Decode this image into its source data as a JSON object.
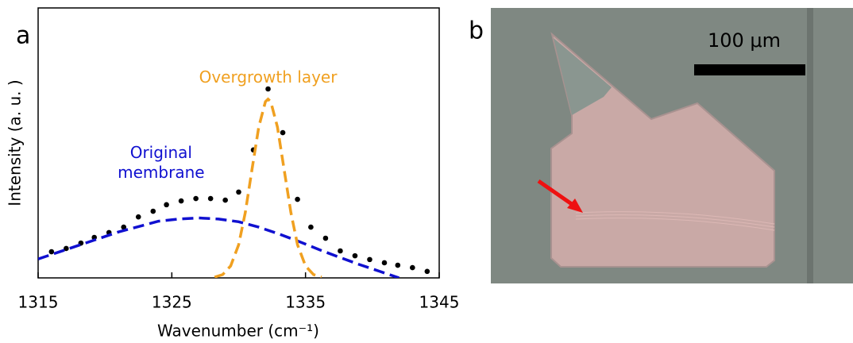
{
  "chart_data": {
    "type": "line",
    "panel_label": "a",
    "xlabel": "Wavenumber (cm⁻¹)",
    "ylabel": "Intensity (a. u. )",
    "xlim": [
      1315,
      1345
    ],
    "xticks": [
      1315,
      1325,
      1335,
      1345
    ],
    "ylim": [
      0,
      1
    ],
    "annotations": [
      {
        "lines": [
          "Overgrowth layer"
        ],
        "color": "#f0a020",
        "x": 1332.2,
        "y": 0.74
      },
      {
        "lines": [
          "Original",
          "membrane"
        ],
        "color": "#1010d0",
        "x": 1324.2,
        "y": 0.46
      }
    ],
    "series": [
      {
        "type": "scatter",
        "color": "#000000",
        "x": [
          1316.0,
          1317.1,
          1318.2,
          1319.2,
          1320.3,
          1321.4,
          1322.5,
          1323.6,
          1324.6,
          1325.7,
          1326.8,
          1327.9,
          1329.0,
          1330.0,
          1331.1,
          1332.2,
          1333.3,
          1334.4,
          1335.4,
          1336.5,
          1337.6,
          1338.7,
          1339.8,
          1340.9,
          1341.9,
          1343.0,
          1344.1
        ],
        "values": [
          0.097,
          0.109,
          0.129,
          0.15,
          0.168,
          0.188,
          0.226,
          0.247,
          0.271,
          0.285,
          0.294,
          0.294,
          0.288,
          0.318,
          0.474,
          0.7,
          0.538,
          0.291,
          0.188,
          0.147,
          0.1,
          0.082,
          0.068,
          0.056,
          0.047,
          0.038,
          0.024
        ]
      },
      {
        "type": "dashed",
        "color": "#1010d0",
        "x": [
          1315,
          1316.5,
          1318,
          1319.5,
          1321,
          1322.5,
          1324,
          1325.5,
          1327,
          1328.5,
          1330,
          1331.5,
          1333,
          1334.5,
          1336,
          1337.5,
          1339,
          1340.5,
          1342
        ],
        "values": [
          0.07,
          0.095,
          0.12,
          0.145,
          0.17,
          0.19,
          0.21,
          0.218,
          0.222,
          0.218,
          0.208,
          0.188,
          0.163,
          0.135,
          0.105,
          0.077,
          0.05,
          0.025,
          0.0
        ]
      },
      {
        "type": "dashed",
        "color": "#f0a020",
        "x": [
          1328.2,
          1328.8,
          1329.4,
          1330,
          1330.5,
          1331,
          1331.5,
          1332,
          1332.2,
          1332.4,
          1332.9,
          1333.4,
          1333.9,
          1334.4,
          1335,
          1335.6,
          1336.2
        ],
        "values": [
          0.003,
          0.012,
          0.044,
          0.123,
          0.243,
          0.402,
          0.559,
          0.653,
          0.662,
          0.653,
          0.559,
          0.402,
          0.243,
          0.123,
          0.044,
          0.012,
          0.003
        ]
      }
    ]
  },
  "panel_b": {
    "label": "b",
    "scale_bar": "100 μm"
  }
}
